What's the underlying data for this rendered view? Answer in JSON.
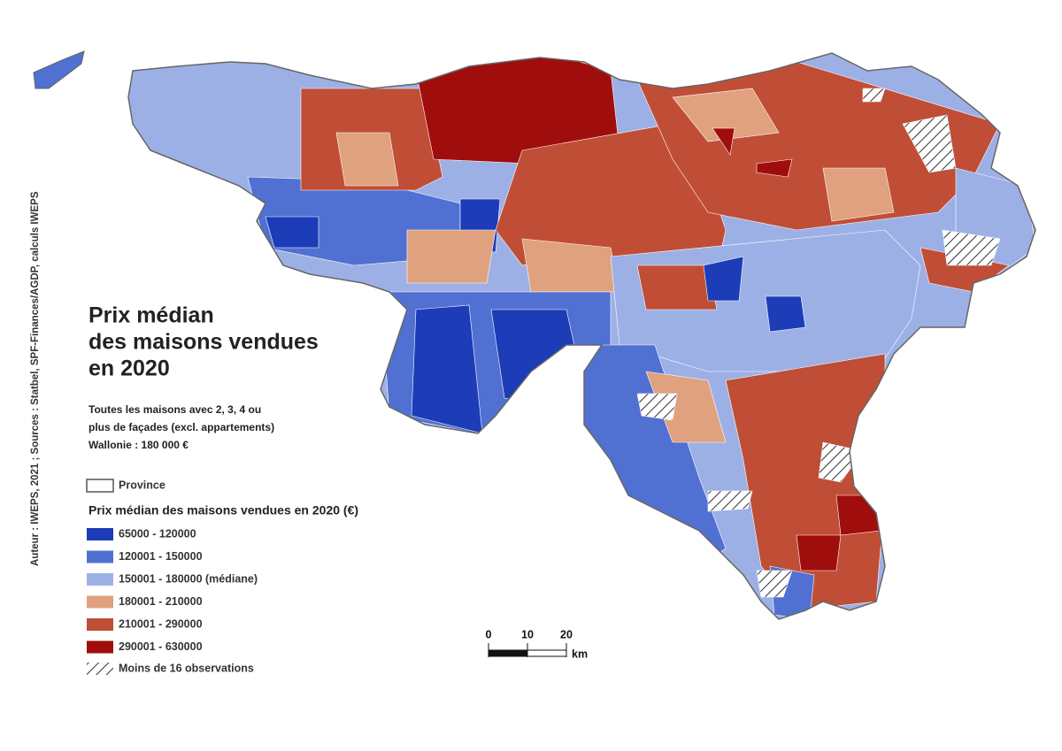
{
  "title_lines": [
    "Prix médian",
    "des maisons vendues",
    "en 2020"
  ],
  "subtitle_lines": [
    "Toutes les maisons avec 2, 3, 4 ou",
    "plus de façades (excl. appartements)",
    "Wallonie : 180 000 €"
  ],
  "legend": {
    "province_label": "Province",
    "title": "Prix médian des maisons vendues en 2020 (€)",
    "classes": [
      {
        "label": "65000 - 120000",
        "color": "#1c3cb8"
      },
      {
        "label": "120001 - 150000",
        "color": "#5071d2"
      },
      {
        "label": "150001 - 180000 (médiane)",
        "color": "#9db0e6"
      },
      {
        "label": "180001 - 210000",
        "color": "#e0a17f"
      },
      {
        "label": "210001 - 290000",
        "color": "#c04e36"
      },
      {
        "label": "290001 - 630000",
        "color": "#a00d0d"
      }
    ],
    "hatch_label": "Moins de 16 observations"
  },
  "scale": {
    "ticks": [
      0,
      10,
      20
    ],
    "unit": "km"
  },
  "credit": "Auteur : IWEPS, 2021 ; Sources : Statbel, SPF-Finances/AGDP, calculs IWEPS"
}
